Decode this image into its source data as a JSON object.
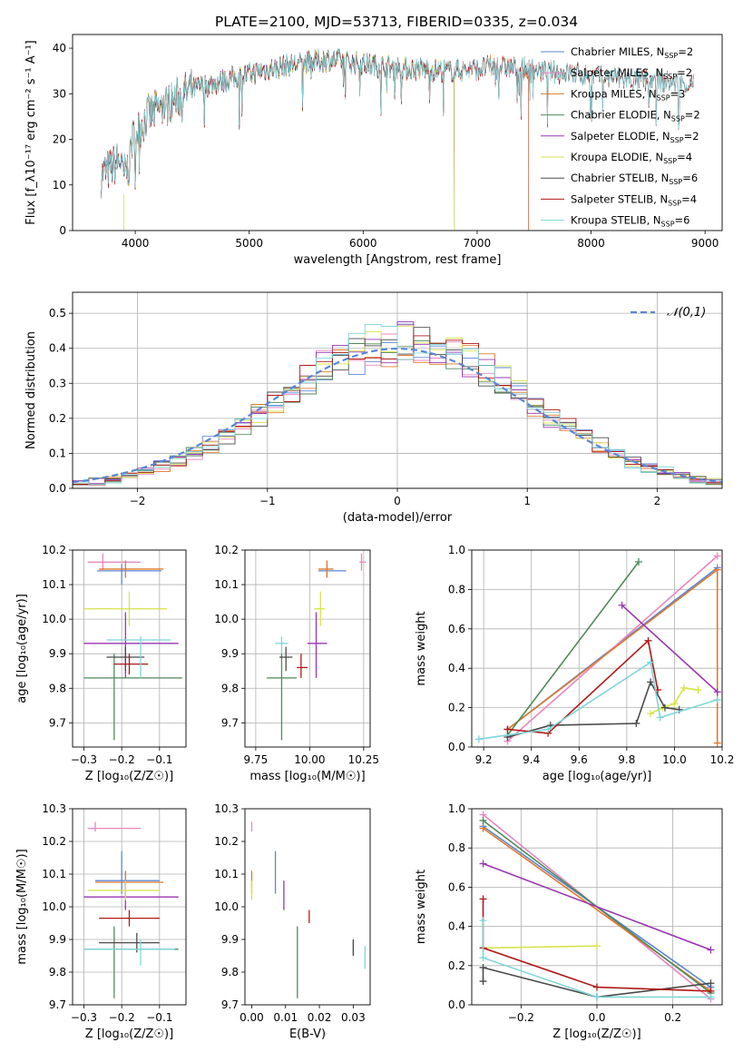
{
  "title": "PLATE=2100, MJD=53713, FIBERID=0335, z=0.034",
  "colors": {
    "Chabrier MILES": "#5b86d6",
    "Salpeter MILES": "#e886c0",
    "Kroupa MILES": "#e0792a",
    "Chabrier ELODIE": "#4f8a5a",
    "Salpeter ELODIE": "#9a35b0",
    "Kroupa ELODIE": "#d6e34a",
    "Chabrier STELIB": "#4a4a4a",
    "Salpeter STELIB": "#b01818",
    "Kroupa STELIB": "#7ed6da"
  },
  "chart_data": [
    {
      "id": "spectrum",
      "type": "line",
      "xlabel": "wavelength [Angstrom, rest frame]",
      "ylabel": "Flux [f_λ10⁻¹⁷ erg cm⁻² s⁻¹ A⁻¹]",
      "xlim": [
        3450,
        9150
      ],
      "ylim": [
        0,
        43
      ],
      "xticks": [
        4000,
        5000,
        6000,
        7000,
        8000,
        9000
      ],
      "yticks": [
        0,
        10,
        20,
        30,
        40
      ],
      "legend_position": "top-right",
      "legend": [
        "Chabrier MILES, N_SSP=2",
        "Salpeter MILES, N_SSP=2",
        "Kroupa MILES, N_SSP=3",
        "Chabrier ELODIE, N_SSP=2",
        "Salpeter ELODIE, N_SSP=2",
        "Kroupa ELODIE, N_SSP=4",
        "Chabrier STELIB, N_SSP=6",
        "Salpeter STELIB, N_SSP=4",
        "Kroupa STELIB, N_SSP=6"
      ],
      "continuum_x": [
        3700,
        3800,
        3900,
        4000,
        4100,
        4300,
        4500,
        4800,
        5100,
        5400,
        5700,
        6000,
        6400,
        6800,
        7200,
        7600,
        8000,
        8400,
        8800,
        8900
      ],
      "continuum_y": [
        12,
        14,
        16,
        21,
        25,
        28,
        31,
        33,
        35,
        36.5,
        37.5,
        36.5,
        35.5,
        35,
        36,
        35,
        34,
        33,
        32.5,
        32
      ],
      "model_ranges": {
        "Chabrier MILES": [
          3700,
          7450
        ],
        "Salpeter MILES": [
          3700,
          7450
        ],
        "Kroupa MILES": [
          3700,
          7450
        ],
        "Chabrier ELODIE": [
          3700,
          6800
        ],
        "Salpeter ELODIE": [
          3700,
          6800
        ],
        "Kroupa ELODIE": [
          3900,
          6800
        ],
        "Chabrier STELIB": [
          3700,
          8900
        ],
        "Salpeter STELIB": [
          3700,
          8900
        ],
        "Kroupa STELIB": [
          3700,
          8900
        ]
      }
    },
    {
      "id": "residuals",
      "type": "bar",
      "xlabel": "(data-model)/error",
      "ylabel": "Normed distribution",
      "xlim": [
        -2.5,
        2.5
      ],
      "ylim": [
        0,
        0.56
      ],
      "xticks": [
        -2,
        -1,
        0,
        1,
        2
      ],
      "yticks": [
        0.0,
        0.1,
        0.2,
        0.3,
        0.4,
        0.5
      ],
      "grid": true,
      "bin_width": 0.125,
      "gaussian_label": "𝒩(0,1)",
      "gaussian_color": "#5b86d6",
      "legend_position": "top-right"
    },
    {
      "id": "age_vs_Z",
      "type": "scatter",
      "xlabel": "Z [log₁₀(Z/Z☉)]",
      "ylabel": "age  [log₁₀(age/yr)]",
      "xlim": [
        -0.33,
        -0.03
      ],
      "ylim": [
        9.63,
        10.2
      ],
      "xticks": [
        -0.3,
        -0.2,
        -0.1
      ],
      "yticks": [
        9.7,
        9.8,
        9.9,
        10.0,
        10.1,
        10.2
      ],
      "grid": true,
      "points": [
        {
          "model": "Chabrier MILES",
          "x": -0.2,
          "y": 10.14,
          "ex": [
            -0.265,
            -0.095
          ],
          "ey": [
            10.1,
            10.16
          ]
        },
        {
          "model": "Salpeter MILES",
          "x": -0.25,
          "y": 10.165,
          "ex": [
            -0.29,
            -0.15
          ],
          "ey": [
            10.14,
            10.19
          ]
        },
        {
          "model": "Kroupa MILES",
          "x": -0.19,
          "y": 10.145,
          "ex": [
            -0.26,
            -0.09
          ],
          "ey": [
            10.12,
            10.17
          ]
        },
        {
          "model": "Chabrier ELODIE",
          "x": -0.22,
          "y": 9.83,
          "ex": [
            -0.3,
            -0.04
          ],
          "ey": [
            9.65,
            9.9
          ]
        },
        {
          "model": "Salpeter ELODIE",
          "x": -0.19,
          "y": 9.93,
          "ex": [
            -0.3,
            -0.05
          ],
          "ey": [
            9.83,
            10.02
          ]
        },
        {
          "model": "Kroupa ELODIE",
          "x": -0.18,
          "y": 10.03,
          "ex": [
            -0.3,
            -0.08
          ],
          "ey": [
            9.98,
            10.08
          ]
        },
        {
          "model": "Chabrier STELIB",
          "x": -0.19,
          "y": 9.89,
          "ex": [
            -0.24,
            -0.14
          ],
          "ey": [
            9.85,
            9.92
          ]
        },
        {
          "model": "Salpeter STELIB",
          "x": -0.18,
          "y": 9.87,
          "ex": [
            -0.22,
            -0.13
          ],
          "ey": [
            9.84,
            9.9
          ]
        },
        {
          "model": "Kroupa STELIB",
          "x": -0.15,
          "y": 9.94,
          "ex": [
            -0.24,
            -0.07
          ],
          "ey": [
            9.83,
            9.95
          ]
        }
      ]
    },
    {
      "id": "age_vs_mass",
      "type": "scatter",
      "xlabel": "mass [log₁₀(M/M☉)]",
      "ylabel": "",
      "xlim": [
        9.7,
        10.28
      ],
      "ylim": [
        9.63,
        10.2
      ],
      "xticks": [
        9.75,
        10.0,
        10.25
      ],
      "yticks": [
        9.7,
        9.8,
        9.9,
        10.0,
        10.1,
        10.2
      ],
      "grid": true,
      "points": [
        {
          "model": "Chabrier MILES",
          "x": 10.08,
          "y": 10.14,
          "ex": [
            10.04,
            10.17
          ],
          "ey": [
            10.12,
            10.16
          ]
        },
        {
          "model": "Salpeter MILES",
          "x": 10.24,
          "y": 10.165,
          "ex": [
            10.23,
            10.26
          ],
          "ey": [
            10.14,
            10.19
          ]
        },
        {
          "model": "Kroupa MILES",
          "x": 10.08,
          "y": 10.145,
          "ex": [
            10.04,
            10.11
          ],
          "ey": [
            10.12,
            10.17
          ]
        },
        {
          "model": "Chabrier ELODIE",
          "x": 9.87,
          "y": 9.83,
          "ex": [
            9.8,
            9.94
          ],
          "ey": [
            9.65,
            9.9
          ]
        },
        {
          "model": "Salpeter ELODIE",
          "x": 10.03,
          "y": 9.93,
          "ex": [
            9.99,
            10.08
          ],
          "ey": [
            9.83,
            10.02
          ]
        },
        {
          "model": "Kroupa ELODIE",
          "x": 10.05,
          "y": 10.03,
          "ex": [
            10.02,
            10.07
          ],
          "ey": [
            9.98,
            10.08
          ]
        },
        {
          "model": "Chabrier STELIB",
          "x": 9.89,
          "y": 9.89,
          "ex": [
            9.86,
            9.92
          ],
          "ey": [
            9.85,
            9.92
          ]
        },
        {
          "model": "Salpeter STELIB",
          "x": 9.96,
          "y": 9.86,
          "ex": [
            9.94,
            9.99
          ],
          "ey": [
            9.83,
            9.9
          ]
        },
        {
          "model": "Kroupa STELIB",
          "x": 9.87,
          "y": 9.93,
          "ex": [
            9.84,
            9.9
          ],
          "ey": [
            9.9,
            9.95
          ]
        }
      ]
    },
    {
      "id": "weight_vs_age",
      "type": "line",
      "xlabel": "age  [log₁₀(age/yr)]",
      "ylabel": "mass weight",
      "xlim": [
        9.15,
        10.2
      ],
      "ylim": [
        0,
        1
      ],
      "xticks": [
        9.2,
        9.4,
        9.6,
        9.8,
        10.0,
        10.2
      ],
      "yticks": [
        0.0,
        0.2,
        0.4,
        0.6,
        0.8,
        1.0
      ],
      "grid": true,
      "series": [
        {
          "model": "Chabrier MILES",
          "x": [
            9.3,
            10.18
          ],
          "y": [
            0.09,
            0.91
          ]
        },
        {
          "model": "Salpeter MILES",
          "x": [
            9.3,
            10.18
          ],
          "y": [
            0.03,
            0.97
          ]
        },
        {
          "model": "Kroupa MILES",
          "x": [
            9.3,
            10.18,
            10.18
          ],
          "y": [
            0.09,
            0.9,
            0.02
          ]
        },
        {
          "model": "Chabrier ELODIE",
          "x": [
            9.3,
            9.85
          ],
          "y": [
            0.06,
            0.94
          ]
        },
        {
          "model": "Salpeter ELODIE",
          "x": [
            9.78,
            10.18
          ],
          "y": [
            0.72,
            0.28
          ]
        },
        {
          "model": "Kroupa ELODIE",
          "x": [
            9.9,
            9.95,
            10.0,
            10.04,
            10.1
          ],
          "y": [
            0.17,
            0.2,
            0.22,
            0.3,
            0.29
          ]
        },
        {
          "model": "Chabrier STELIB",
          "x": [
            9.3,
            9.48,
            9.84,
            9.9,
            9.96,
            10.02
          ],
          "y": [
            0.05,
            0.11,
            0.12,
            0.33,
            0.2,
            0.19
          ]
        },
        {
          "model": "Salpeter STELIB",
          "x": [
            9.3,
            9.47,
            9.89,
            9.93
          ],
          "y": [
            0.09,
            0.07,
            0.54,
            0.29
          ]
        },
        {
          "model": "Kroupa STELIB",
          "x": [
            9.18,
            9.47,
            9.9,
            9.94,
            10.18
          ],
          "y": [
            0.04,
            0.09,
            0.43,
            0.15,
            0.24
          ]
        }
      ]
    },
    {
      "id": "mass_vs_Z",
      "type": "scatter",
      "xlabel": "Z [log₁₀(Z/Z☉)]",
      "ylabel": "mass [log₁₀(M/M☉)]",
      "xlim": [
        -0.33,
        -0.03
      ],
      "ylim": [
        9.7,
        10.3
      ],
      "xticks": [
        -0.3,
        -0.2,
        -0.1
      ],
      "yticks": [
        9.7,
        9.8,
        9.9,
        10.0,
        10.1,
        10.2,
        10.3
      ],
      "grid": true,
      "points": [
        {
          "model": "Chabrier MILES",
          "x": -0.2,
          "y": 10.08,
          "ex": [
            -0.27,
            -0.1
          ],
          "ey": [
            10.04,
            10.17
          ]
        },
        {
          "model": "Salpeter MILES",
          "x": -0.27,
          "y": 10.24,
          "ex": [
            -0.29,
            -0.15
          ],
          "ey": [
            10.23,
            10.26
          ]
        },
        {
          "model": "Kroupa MILES",
          "x": -0.19,
          "y": 10.075,
          "ex": [
            -0.27,
            -0.09
          ],
          "ey": [
            10.04,
            10.11
          ]
        },
        {
          "model": "Chabrier ELODIE",
          "x": -0.22,
          "y": 9.87,
          "ex": [
            -0.3,
            -0.05
          ],
          "ey": [
            9.72,
            9.94
          ]
        },
        {
          "model": "Salpeter ELODIE",
          "x": -0.19,
          "y": 10.03,
          "ex": [
            -0.3,
            -0.05
          ],
          "ey": [
            9.99,
            10.08
          ]
        },
        {
          "model": "Kroupa ELODIE",
          "x": -0.19,
          "y": 10.05,
          "ex": [
            -0.29,
            -0.1
          ],
          "ey": [
            10.02,
            10.08
          ]
        },
        {
          "model": "Chabrier STELIB",
          "x": -0.16,
          "y": 9.89,
          "ex": [
            -0.26,
            -0.1
          ],
          "ey": [
            9.86,
            9.92
          ]
        },
        {
          "model": "Salpeter STELIB",
          "x": -0.18,
          "y": 9.965,
          "ex": [
            -0.26,
            -0.1
          ],
          "ey": [
            9.94,
            9.99
          ]
        },
        {
          "model": "Kroupa STELIB",
          "x": -0.15,
          "y": 9.87,
          "ex": [
            -0.3,
            -0.06
          ],
          "ey": [
            9.82,
            9.9
          ]
        }
      ]
    },
    {
      "id": "mass_vs_ebv",
      "type": "scatter",
      "xlabel": "E(B-V)",
      "ylabel": "",
      "xlim": [
        -0.002,
        0.035
      ],
      "ylim": [
        9.7,
        10.3
      ],
      "xticks": [
        0.0,
        0.01,
        0.02,
        0.03
      ],
      "yticks": [
        9.7,
        9.8,
        9.9,
        10.0,
        10.1,
        10.2,
        10.3
      ],
      "grid": false,
      "points": [
        {
          "model": "Chabrier MILES",
          "x": 0.007,
          "y": 10.08,
          "ex": [
            0.007,
            0.007
          ],
          "ey": [
            10.04,
            10.17
          ]
        },
        {
          "model": "Salpeter MILES",
          "x": 0.0,
          "y": 10.24,
          "ex": [
            0.0,
            0.0
          ],
          "ey": [
            10.23,
            10.26
          ]
        },
        {
          "model": "Kroupa MILES",
          "x": 0.0,
          "y": 10.075,
          "ex": [
            0.0,
            0.0
          ],
          "ey": [
            10.04,
            10.11
          ]
        },
        {
          "model": "Chabrier ELODIE",
          "x": 0.0135,
          "y": 9.87,
          "ex": [
            0.0135,
            0.0135
          ],
          "ey": [
            9.72,
            9.94
          ]
        },
        {
          "model": "Salpeter ELODIE",
          "x": 0.0095,
          "y": 10.03,
          "ex": [
            0.0095,
            0.0095
          ],
          "ey": [
            9.99,
            10.08
          ]
        },
        {
          "model": "Kroupa ELODIE",
          "x": 0.0,
          "y": 10.05,
          "ex": [
            0.0,
            0.0
          ],
          "ey": [
            10.02,
            10.08
          ]
        },
        {
          "model": "Chabrier STELIB",
          "x": 0.03,
          "y": 9.88,
          "ex": [
            0.03,
            0.03
          ],
          "ey": [
            9.85,
            9.9
          ]
        },
        {
          "model": "Salpeter STELIB",
          "x": 0.017,
          "y": 9.965,
          "ex": [
            0.017,
            0.017
          ],
          "ey": [
            9.95,
            9.99
          ]
        },
        {
          "model": "Kroupa STELIB",
          "x": 0.0335,
          "y": 9.85,
          "ex": [
            0.0335,
            0.0335
          ],
          "ey": [
            9.81,
            9.88
          ]
        }
      ]
    },
    {
      "id": "weight_vs_Z",
      "type": "line",
      "xlabel": "Z [log₁₀(Z/Z☉)]",
      "ylabel": "mass weight",
      "xlim": [
        -0.33,
        0.33
      ],
      "ylim": [
        0,
        1
      ],
      "xticks": [
        -0.2,
        0.0,
        0.2
      ],
      "yticks": [
        0.0,
        0.2,
        0.4,
        0.6,
        0.8,
        1.0
      ],
      "grid": true,
      "series": [
        {
          "model": "Chabrier MILES",
          "x": [
            -0.3,
            0.3
          ],
          "y": [
            0.91,
            0.09
          ]
        },
        {
          "model": "Salpeter MILES",
          "x": [
            -0.3,
            0.3
          ],
          "y": [
            0.97,
            0.03
          ]
        },
        {
          "model": "Kroupa MILES",
          "x": [
            -0.3,
            0.3
          ],
          "y": [
            0.9,
            0.07
          ]
        },
        {
          "model": "Chabrier ELODIE",
          "x": [
            -0.3,
            0.3
          ],
          "y": [
            0.94,
            0.06
          ]
        },
        {
          "model": "Salpeter ELODIE",
          "x": [
            -0.3,
            0.3
          ],
          "y": [
            0.72,
            0.28
          ]
        },
        {
          "model": "Kroupa ELODIE",
          "x": [
            -0.3,
            0.0
          ],
          "y": [
            0.29,
            0.3
          ]
        },
        {
          "model": "Chabrier STELIB",
          "x": [
            -0.3,
            -0.3,
            0.0,
            0.3
          ],
          "y": [
            0.12,
            0.19,
            0.04,
            0.11
          ]
        },
        {
          "model": "Salpeter STELIB",
          "x": [
            -0.3,
            -0.3,
            0.0,
            0.3
          ],
          "y": [
            0.54,
            0.29,
            0.09,
            0.07
          ]
        },
        {
          "model": "Kroupa STELIB",
          "x": [
            -0.3,
            -0.3,
            0.0,
            0.3
          ],
          "y": [
            0.43,
            0.24,
            0.04,
            0.04
          ]
        }
      ]
    }
  ]
}
